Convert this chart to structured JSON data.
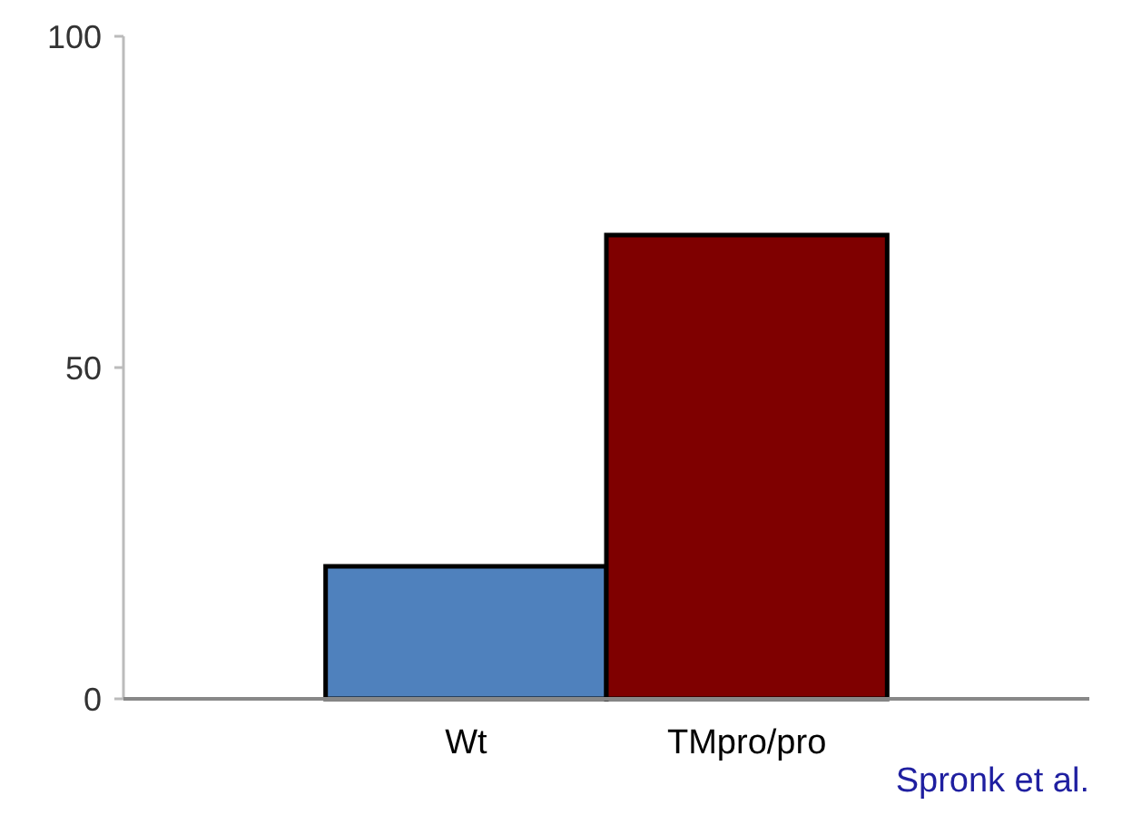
{
  "chart_data": {
    "type": "bar",
    "categories": [
      "Wt",
      "TMpro/pro"
    ],
    "values": [
      20,
      70
    ],
    "colors": [
      "#4f81bd",
      "#7f0000"
    ],
    "ylim": [
      0,
      100
    ],
    "yticks": [
      0,
      50,
      100
    ],
    "grid": false,
    "annotations": [
      "Spronk et al."
    ]
  }
}
